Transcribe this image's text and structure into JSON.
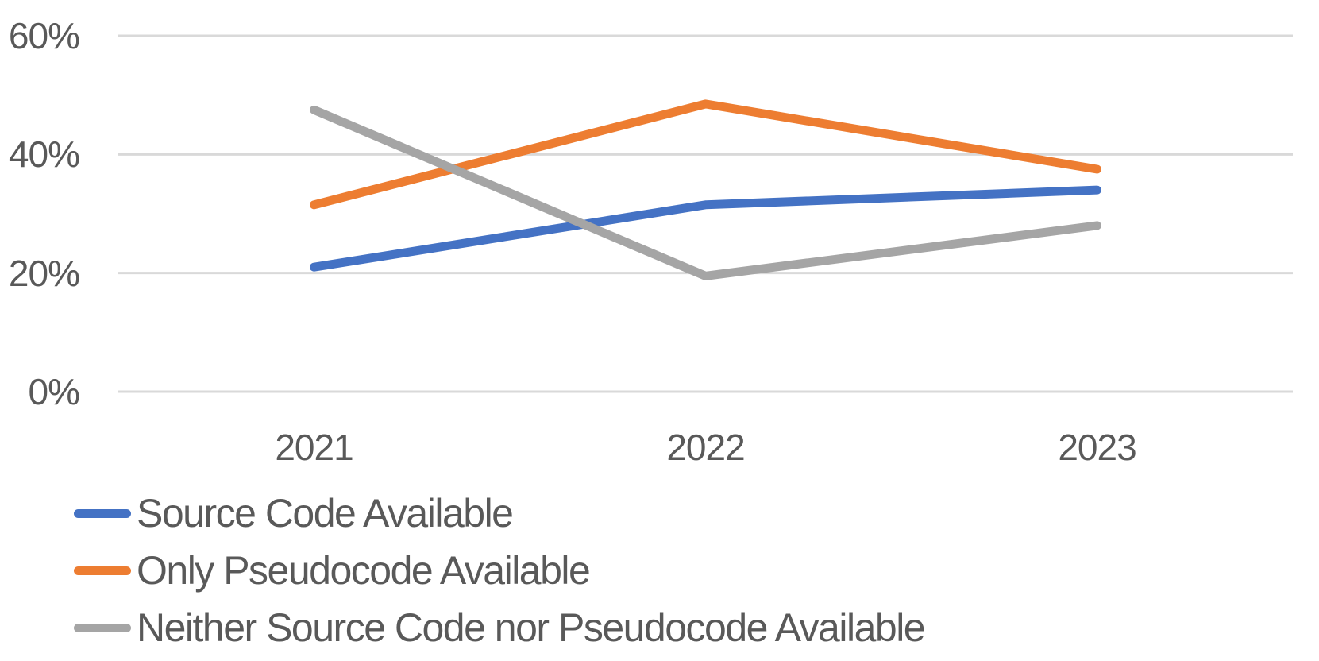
{
  "chart_data": {
    "type": "line",
    "title": "",
    "xlabel": "",
    "ylabel": "",
    "x": [
      "2021",
      "2022",
      "2023"
    ],
    "series": [
      {
        "name": "Source Code Available",
        "color": "#4472C4",
        "values": [
          21,
          31.5,
          34
        ]
      },
      {
        "name": "Only Pseudocode Available",
        "color": "#ED7D31",
        "values": [
          31.5,
          48.5,
          37.5
        ]
      },
      {
        "name": "Neither Source Code nor Pseudocode Available",
        "color": "#A5A5A5",
        "values": [
          47.5,
          19.5,
          28
        ]
      }
    ],
    "y_axis": {
      "min": 0,
      "max": 60,
      "ticks": [
        {
          "value": 0,
          "label": "0%"
        },
        {
          "value": 20,
          "label": "20%"
        },
        {
          "value": 40,
          "label": "40%"
        },
        {
          "value": 60,
          "label": "60%"
        }
      ]
    },
    "grid": true,
    "legend_position": "bottom-left",
    "colors": {
      "text": "#595959",
      "gridline": "#D9D9D9",
      "background": "#FFFFFF"
    }
  }
}
